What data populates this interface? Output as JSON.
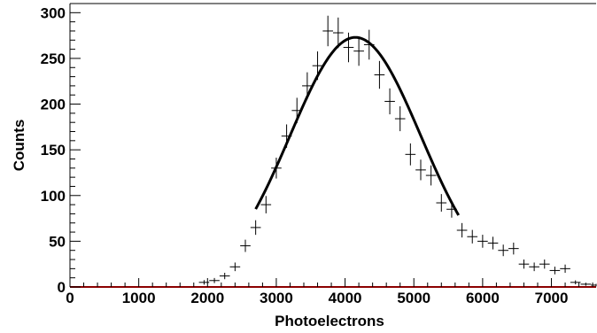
{
  "chart_data": {
    "type": "scatter",
    "title": "",
    "xlabel": "Photoelectrons",
    "ylabel": "Counts",
    "xlim": [
      0,
      7650
    ],
    "ylim": [
      0,
      310
    ],
    "x_ticks": [
      0,
      1000,
      2000,
      3000,
      4000,
      5000,
      6000,
      7000
    ],
    "y_ticks": [
      0,
      50,
      100,
      150,
      200,
      250,
      300
    ],
    "x_tick_labels": [
      "0",
      "1000",
      "2000",
      "3000",
      "4000",
      "5000",
      "6000",
      "7000"
    ],
    "y_tick_labels": [
      "0",
      "50",
      "100",
      "150",
      "200",
      "250",
      "300"
    ],
    "grid": false,
    "series": [
      {
        "kind": "points_with_error_bars",
        "color": "#000000",
        "bin_half_width": 75,
        "x": [
          1950,
          2100,
          2250,
          2400,
          2550,
          2700,
          2850,
          3000,
          3150,
          3300,
          3450,
          3600,
          3750,
          3900,
          4050,
          4200,
          4350,
          4500,
          4650,
          4800,
          4950,
          5100,
          5250,
          5400,
          5550,
          5700,
          5850,
          6000,
          6150,
          6300,
          6450,
          6600,
          6750,
          6900,
          7050,
          7200,
          7350,
          7500,
          7650
        ],
        "y": [
          5,
          7,
          12,
          22,
          45,
          65,
          90,
          130,
          165,
          193,
          220,
          242,
          280,
          278,
          262,
          258,
          265,
          232,
          203,
          184,
          145,
          128,
          122,
          92,
          85,
          62,
          55,
          50,
          48,
          40,
          42,
          25,
          22,
          25,
          18,
          20,
          5,
          3,
          2
        ],
        "y_err": [
          2.5,
          2.8,
          3.5,
          4.7,
          6.7,
          8,
          9.5,
          11.4,
          12.8,
          13.9,
          14.8,
          15.6,
          16.7,
          16.7,
          16.2,
          16.1,
          16.3,
          15.2,
          14.2,
          13.6,
          12,
          11.3,
          11,
          9.6,
          9.2,
          7.9,
          7.4,
          7.1,
          6.9,
          6.3,
          6.5,
          5,
          4.7,
          5,
          4.2,
          4.5,
          2.2,
          1.7,
          1.4
        ]
      },
      {
        "kind": "gaussian_fit_curve",
        "color": "#000000",
        "x_range": [
          2700,
          5650
        ],
        "amplitude": 273,
        "mean": 4150,
        "sigma": 950
      },
      {
        "kind": "baseline",
        "color": "#8b0000",
        "y": 0
      }
    ]
  }
}
